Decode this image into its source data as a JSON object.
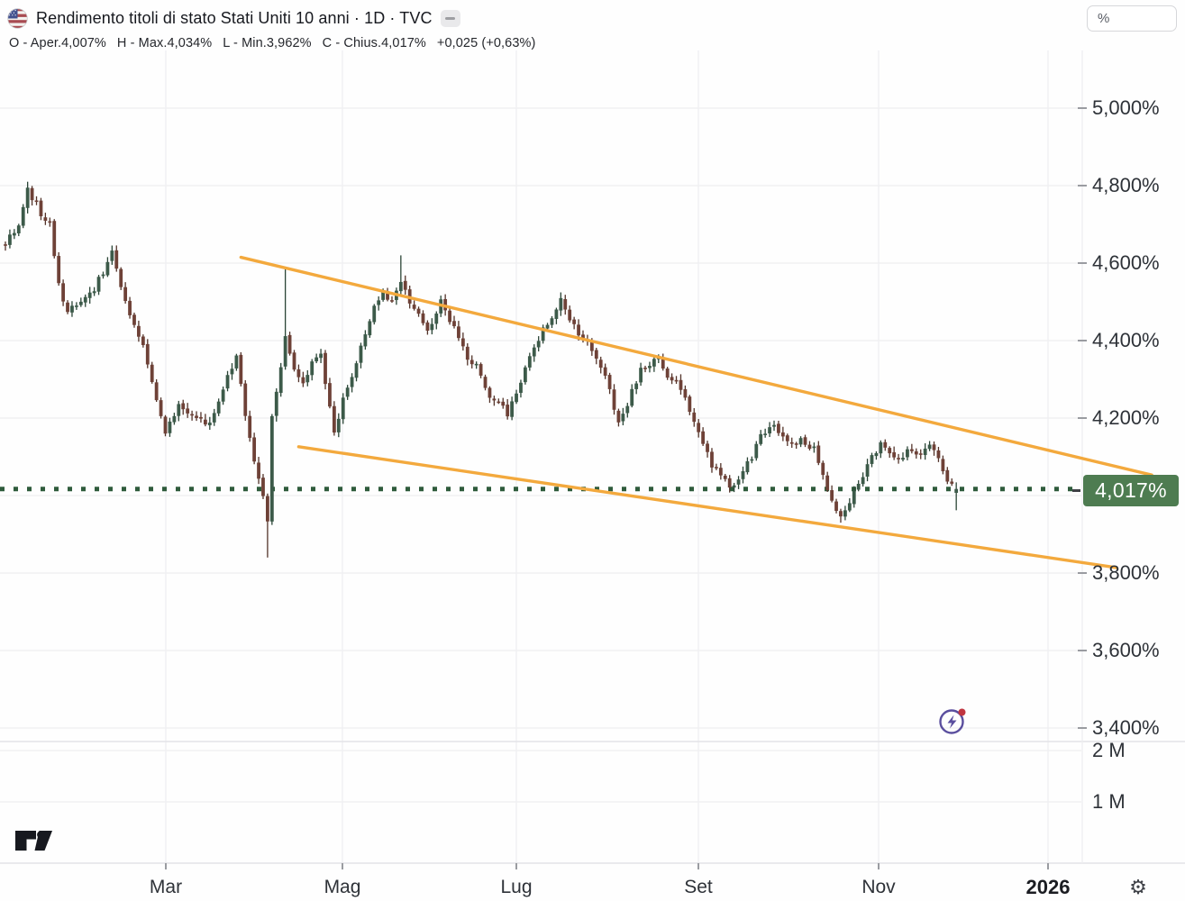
{
  "header": {
    "flag_icon": "us-flag-icon",
    "symbol_title": "Rendimento titoli di stato Stati Uniti 10 anni · 1D · TVC",
    "collapse_icon": "minus-icon",
    "ohlc_parts": [
      "O - Aper.4,007%",
      "H - Max.4,034%",
      "L - Min.3,962%",
      "C - Chius.4,017%",
      "+0,025 (+0,63%)"
    ]
  },
  "price_scale": {
    "unit_button_label": "%",
    "tick_labels": [
      "5,000%",
      "4,800%",
      "4,600%",
      "4,400%",
      "4,200%",
      "3,800%",
      "3,600%",
      "3,400%"
    ],
    "tick_values": [
      5.0,
      4.8,
      4.6,
      4.4,
      4.2,
      3.8,
      3.6,
      3.4
    ],
    "last_price_label": "4,017%"
  },
  "volume_scale": {
    "tick_labels": [
      "2 M",
      "1 M"
    ],
    "tick_values": [
      2000000,
      1000000
    ]
  },
  "time_scale": {
    "tick_labels": [
      "Mar",
      "Mag",
      "Lug",
      "Set",
      "Nov",
      "2026"
    ]
  },
  "footer": {
    "logo": "tradingview-logo",
    "settings_icon": "gear-icon"
  },
  "floating": {
    "flash_icon": "lightning-circle-icon",
    "notification_dot": true
  },
  "colors": {
    "up_body": "#3c5a49",
    "down_body": "#6e4137",
    "up_wick": "#2b4536",
    "down_wick": "#523329",
    "trendline": "#f3a93d",
    "price_line": "#2f5b3c",
    "badge_bg": "#4e7c51",
    "badge_text": "#ffffff",
    "grid": "#f0f0f2",
    "separator": "#e4e4e7",
    "tick": "#9a9ca1"
  },
  "chart_data": {
    "type": "candlestick",
    "title": "Rendimento titoli di stato Stati Uniti 10 anni",
    "interval": "1D",
    "exchange": "TVC",
    "unit": "%",
    "current": {
      "open": 4.007,
      "high": 4.034,
      "low": 3.962,
      "close": 4.017,
      "change": 0.025,
      "change_pct": 0.63
    },
    "y_axis": {
      "label": "%",
      "ticks": [
        5.0,
        4.8,
        4.6,
        4.4,
        4.2,
        3.8,
        3.6,
        3.4
      ],
      "visible_range": [
        3.37,
        5.14
      ],
      "grid": true
    },
    "x_axis": {
      "ticks": [
        "Mar",
        "Mag",
        "Lug",
        "Set",
        "Nov",
        "2026"
      ],
      "grid": true
    },
    "volume_axis": {
      "ticks": [
        "2 M",
        "1 M"
      ]
    },
    "price_line": 4.017,
    "trendlines": [
      {
        "name": "upper-descending",
        "from_day": 53,
        "from_price": 4.615,
        "to_day": 258,
        "to_price": 4.053
      },
      {
        "name": "lower-descending",
        "from_day": 66,
        "from_price": 4.126,
        "to_day": 250,
        "to_price": 3.814
      }
    ],
    "candle_count": 215,
    "anchors": [
      [
        0,
        4.65
      ],
      [
        3,
        4.7
      ],
      [
        5,
        4.79
      ],
      [
        8,
        4.73
      ],
      [
        10,
        4.7
      ],
      [
        12,
        4.55
      ],
      [
        14,
        4.47
      ],
      [
        17,
        4.5
      ],
      [
        20,
        4.53
      ],
      [
        24,
        4.63
      ],
      [
        27,
        4.5
      ],
      [
        30,
        4.42
      ],
      [
        33,
        4.3
      ],
      [
        36,
        4.16
      ],
      [
        39,
        4.24
      ],
      [
        43,
        4.2
      ],
      [
        46,
        4.19
      ],
      [
        49,
        4.28
      ],
      [
        52,
        4.36
      ],
      [
        54,
        4.2
      ],
      [
        56,
        4.08
      ],
      [
        58,
        4.0
      ],
      [
        59,
        3.93
      ],
      [
        60,
        4.2
      ],
      [
        62,
        4.33
      ],
      [
        63,
        4.42
      ],
      [
        65,
        4.33
      ],
      [
        67,
        4.28
      ],
      [
        69,
        4.34
      ],
      [
        71,
        4.36
      ],
      [
        73,
        4.22
      ],
      [
        74,
        4.16
      ],
      [
        76,
        4.25
      ],
      [
        78,
        4.31
      ],
      [
        80,
        4.38
      ],
      [
        82,
        4.46
      ],
      [
        85,
        4.52
      ],
      [
        87,
        4.5
      ],
      [
        89,
        4.56
      ],
      [
        91,
        4.5
      ],
      [
        93,
        4.46
      ],
      [
        95,
        4.42
      ],
      [
        97,
        4.47
      ],
      [
        98,
        4.5
      ],
      [
        100,
        4.45
      ],
      [
        102,
        4.41
      ],
      [
        104,
        4.36
      ],
      [
        106,
        4.33
      ],
      [
        109,
        4.26
      ],
      [
        111,
        4.24
      ],
      [
        113,
        4.21
      ],
      [
        115,
        4.26
      ],
      [
        118,
        4.36
      ],
      [
        120,
        4.4
      ],
      [
        122,
        4.45
      ],
      [
        125,
        4.5
      ],
      [
        127,
        4.46
      ],
      [
        129,
        4.42
      ],
      [
        131,
        4.39
      ],
      [
        133,
        4.35
      ],
      [
        135,
        4.31
      ],
      [
        136,
        4.28
      ],
      [
        138,
        4.18
      ],
      [
        140,
        4.24
      ],
      [
        143,
        4.32
      ],
      [
        145,
        4.34
      ],
      [
        147,
        4.35
      ],
      [
        149,
        4.31
      ],
      [
        152,
        4.28
      ],
      [
        154,
        4.22
      ],
      [
        156,
        4.16
      ],
      [
        159,
        4.08
      ],
      [
        161,
        4.05
      ],
      [
        163,
        4.02
      ],
      [
        165,
        4.05
      ],
      [
        168,
        4.1
      ],
      [
        170,
        4.15
      ],
      [
        173,
        4.18
      ],
      [
        175,
        4.15
      ],
      [
        177,
        4.13
      ],
      [
        179,
        4.14
      ],
      [
        182,
        4.12
      ],
      [
        184,
        4.05
      ],
      [
        186,
        3.98
      ],
      [
        188,
        3.95
      ],
      [
        190,
        3.98
      ],
      [
        192,
        4.03
      ],
      [
        194,
        4.08
      ],
      [
        197,
        4.13
      ],
      [
        199,
        4.11
      ],
      [
        202,
        4.1
      ],
      [
        204,
        4.12
      ],
      [
        206,
        4.11
      ],
      [
        208,
        4.13
      ],
      [
        210,
        4.09
      ],
      [
        211,
        4.06
      ],
      [
        213,
        4.03
      ],
      [
        214,
        4.017
      ]
    ],
    "wick_overrides": [
      {
        "day": 5,
        "high": 4.81
      },
      {
        "day": 59,
        "low": 3.84
      },
      {
        "day": 63,
        "high": 4.585
      },
      {
        "day": 89,
        "high": 4.62
      },
      {
        "day": 188,
        "low": 3.93
      },
      {
        "day": 214,
        "low": 3.962
      }
    ],
    "noise": {
      "seed": 11,
      "body": 0.02,
      "wick": 0.022,
      "open_gap": 0.006
    }
  }
}
